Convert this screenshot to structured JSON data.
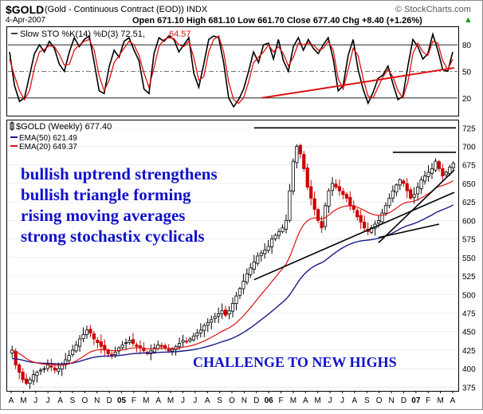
{
  "header": {
    "symbol": "$GOLD",
    "description": "(Gold - Continuous Contract (EOD)) INDX",
    "watermark": "© StockCharts.com",
    "date": "4-Apr-2007",
    "quote": "Open 671.10 High 681.10 Low 661.70 Close 677.40 Chg +8.40 (+1.26%)",
    "quote_arrow": "▲"
  },
  "stoch_panel": {
    "label": "Slow STO %K(14) %D(3) 72.51,",
    "d_value": "64.57",
    "ticks": [
      "80",
      "50",
      "20"
    ]
  },
  "price_panel": {
    "legend_title": "$GOLD (Weekly) 677.40",
    "ema50_label": "EMA(50) 621.49",
    "ema20_label": "EMA(20) 649.37",
    "y_ticks": [
      "725",
      "700",
      "675",
      "650",
      "625",
      "600",
      "575",
      "550",
      "525",
      "500",
      "475",
      "450",
      "425",
      "400",
      "375"
    ]
  },
  "annotations": {
    "lines": [
      "bullish uptrend strengthens",
      "bullish triangle forming",
      "rising moving averages",
      "strong stochastix cyclicals"
    ],
    "challenge": "CHALLENGE TO NEW HIGHS"
  },
  "x_axis": {
    "labels": [
      "A",
      "M",
      "J",
      "J",
      "A",
      "S",
      "O",
      "N",
      "D",
      "05",
      "F",
      "M",
      "A",
      "M",
      "J",
      "J",
      "A",
      "S",
      "O",
      "N",
      "D",
      "06",
      "F",
      "M",
      "A",
      "M",
      "J",
      "J",
      "A",
      "S",
      "O",
      "N",
      "D",
      "07",
      "F",
      "M",
      "A"
    ]
  },
  "colors": {
    "ema50": "#1a1a8c",
    "ema20": "#dd1111",
    "up": "#000000",
    "down": "#cc0000",
    "stoch_k": "#000000",
    "stoch_d": "#dd1111",
    "annotation": "#1010cc"
  },
  "chart_data": [
    {
      "type": "line",
      "title": "Slow STO %K(14) %D(3)",
      "ylim": [
        0,
        100
      ],
      "levels": [
        80,
        50,
        20
      ],
      "series": [
        {
          "name": "%K",
          "values": [
            72,
            34,
            16,
            20,
            45,
            70,
            80,
            72,
            84,
            76,
            58,
            50,
            72,
            88,
            78,
            86,
            90,
            60,
            28,
            25,
            55,
            74,
            66,
            84,
            88,
            74,
            62,
            30,
            25,
            70,
            88,
            84,
            90,
            86,
            72,
            80,
            88,
            48,
            32,
            58,
            86,
            90,
            88,
            60,
            20,
            10,
            18,
            30,
            50,
            72,
            60,
            80,
            82,
            64,
            86,
            62,
            50,
            78,
            88,
            74,
            86,
            76,
            70,
            80,
            88,
            64,
            28,
            34,
            68,
            86,
            52,
            30,
            14,
            26,
            42,
            46,
            56,
            36,
            18,
            22,
            56,
            86,
            78,
            64,
            70,
            92,
            74,
            52,
            50,
            72
          ]
        },
        {
          "name": "%D",
          "values": [
            64,
            45,
            28,
            18,
            28,
            54,
            72,
            75,
            79,
            78,
            69,
            57,
            58,
            74,
            80,
            84,
            86,
            74,
            45,
            28,
            40,
            60,
            68,
            76,
            84,
            80,
            68,
            48,
            32,
            54,
            78,
            86,
            88,
            87,
            80,
            78,
            84,
            66,
            40,
            44,
            72,
            86,
            90,
            72,
            38,
            18,
            14,
            20,
            38,
            60,
            66,
            72,
            80,
            72,
            78,
            70,
            56,
            66,
            82,
            80,
            82,
            80,
            74,
            76,
            84,
            74,
            42,
            30,
            52,
            76,
            68,
            42,
            22,
            20,
            32,
            44,
            52,
            44,
            28,
            20,
            38,
            70,
            82,
            72,
            68,
            84,
            82,
            62,
            52,
            64
          ]
        }
      ],
      "trendline": {
        "from": 2,
        "to": 100,
        "y_from": 20,
        "y_to": 54
      }
    },
    {
      "type": "line",
      "title": "$GOLD (Weekly)",
      "ylim": [
        370,
        735
      ],
      "last_close": 677.4,
      "closes": [
        425,
        405,
        395,
        385,
        380,
        385,
        392,
        395,
        398,
        400,
        405,
        402,
        398,
        400,
        406,
        412,
        418,
        425,
        432,
        440,
        446,
        452,
        448,
        440,
        435,
        430,
        425,
        420,
        418,
        422,
        428,
        432,
        435,
        438,
        434,
        430,
        428,
        424,
        420,
        424,
        428,
        432,
        430,
        428,
        424,
        426,
        430,
        434,
        438,
        436,
        440,
        444,
        448,
        452,
        458,
        462,
        466,
        470,
        474,
        478,
        472,
        478,
        488,
        498,
        508,
        518,
        528,
        536,
        544,
        552,
        556,
        560,
        565,
        575,
        580,
        585,
        590,
        600,
        640,
        680,
        700,
        690,
        670,
        645,
        630,
        615,
        600,
        590,
        620,
        640,
        650,
        645,
        640,
        635,
        630,
        620,
        615,
        605,
        598,
        590,
        585,
        590,
        595,
        600,
        610,
        620,
        630,
        640,
        648,
        655,
        650,
        640,
        630,
        635,
        645,
        655,
        660,
        665,
        670,
        680,
        670,
        660,
        665,
        672,
        677
      ],
      "series": [
        {
          "name": "EMA(50)",
          "last": 621.49
        },
        {
          "name": "EMA(20)",
          "last": 649.37
        }
      ],
      "resistance_lines": [
        725,
        692
      ],
      "support_line": {
        "from_week": 70,
        "to_week": 128,
        "y_from": 520,
        "y_to": 638
      },
      "trend_line": {
        "from_week": 103,
        "to_week": 128,
        "y_from": 570,
        "y_to": 668
      },
      "triangle_lower": {
        "from_week": 103,
        "to_week": 120,
        "y_from": 577,
        "y_to": 595
      }
    }
  ]
}
